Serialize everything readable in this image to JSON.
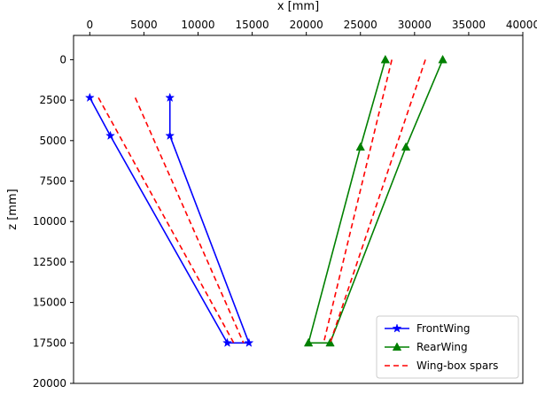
{
  "chart_data": {
    "type": "line",
    "xlabel": "x [mm]",
    "ylabel": "z [mm]",
    "xlim": [
      -1500,
      40000
    ],
    "ylim": [
      20000,
      -1500
    ],
    "y_inverted": true,
    "xaxis_position": "top",
    "grid": false,
    "legend_position": "lower-right",
    "xticks": [
      0,
      5000,
      10000,
      15000,
      20000,
      25000,
      30000,
      35000,
      40000
    ],
    "yticks": [
      0,
      2500,
      5000,
      7500,
      10000,
      12500,
      15000,
      17500,
      20000
    ],
    "series": [
      {
        "name": "FrontWing",
        "color": "#0000ff",
        "linestyle": "solid",
        "marker": "star",
        "x": [
          0,
          1900,
          12700,
          14700,
          7400,
          7400
        ],
        "y": [
          2350,
          4700,
          17500,
          17500,
          4700,
          2350
        ]
      },
      {
        "name": "RearWing",
        "color": "#008000",
        "linestyle": "solid",
        "marker": "triangle",
        "x": [
          27300,
          25000,
          20200,
          22200,
          29200,
          32600
        ],
        "y": [
          0,
          5400,
          17500,
          17500,
          5400,
          0
        ]
      },
      {
        "name": "Wing-box spars",
        "color": "#ff0000",
        "linestyle": "dashed",
        "marker": "none",
        "segments": [
          {
            "x": [
              800,
              13300
            ],
            "y": [
              2350,
              17500
            ]
          },
          {
            "x": [
              4200,
              14200
            ],
            "y": [
              2350,
              17500
            ]
          },
          {
            "x": [
              27900,
              21600
            ],
            "y": [
              0,
              17500
            ]
          },
          {
            "x": [
              31000,
              22200
            ],
            "y": [
              0,
              17500
            ]
          }
        ]
      }
    ]
  }
}
